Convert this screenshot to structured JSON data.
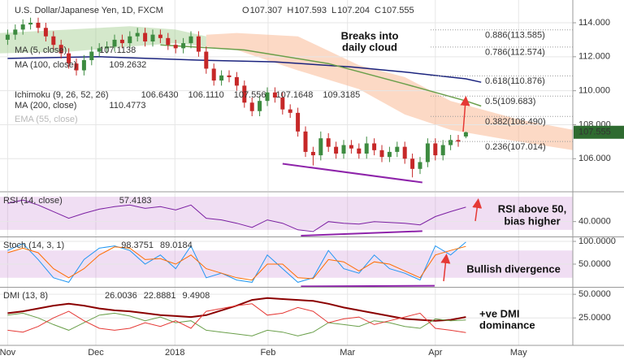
{
  "chart_data": [
    {
      "type": "candlestick",
      "title": "U.S. Dollar/Japanese Yen, 1D, FXCM",
      "ohlc_labels": [
        "O",
        "H",
        "L",
        "C"
      ],
      "categories": [
        null,
        null,
        null,
        null,
        null,
        null,
        null,
        null,
        null,
        null,
        null,
        null,
        null,
        null,
        null,
        null,
        null,
        null,
        null,
        null,
        null,
        null,
        null,
        null,
        null,
        null,
        null,
        null,
        null,
        null,
        null,
        null,
        null,
        null,
        null,
        null,
        null,
        null,
        null,
        null,
        null,
        null,
        null,
        null,
        null,
        null,
        null,
        null,
        null,
        null,
        null,
        null,
        null,
        null,
        null,
        null,
        null,
        null,
        null,
        null,
        null
      ],
      "open": [
        113.0,
        113.3,
        113.6,
        113.9,
        114.0,
        113.7,
        113.2,
        112.7,
        112.2,
        111.6,
        111.2,
        111.8,
        112.3,
        112.5,
        112.6,
        113.0,
        112.8,
        113.2,
        113.4,
        112.9,
        113.3,
        113.1,
        112.7,
        112.5,
        112.8,
        113.2,
        112.3,
        111.3,
        110.6,
        110.9,
        110.8,
        110.3,
        109.3,
        108.8,
        109.4,
        109.9,
        109.6,
        108.9,
        108.7,
        107.6,
        106.4,
        106.2,
        107.2,
        106.7,
        106.3,
        106.8,
        106.6,
        106.3,
        106.9,
        106.5,
        106.1,
        106.4,
        106.7,
        106.0,
        105.4,
        105.8,
        106.9,
        106.2,
        106.8,
        107.1,
        107.307
      ],
      "high": [
        113.6,
        113.9,
        114.2,
        114.3,
        114.3,
        114.0,
        113.5,
        113.0,
        112.5,
        111.9,
        112.1,
        112.6,
        112.8,
        112.9,
        113.3,
        113.3,
        113.5,
        113.7,
        113.7,
        113.6,
        113.6,
        113.4,
        113.0,
        113.1,
        113.5,
        113.5,
        112.6,
        111.6,
        111.2,
        111.2,
        111.1,
        110.6,
        109.6,
        109.7,
        110.2,
        110.2,
        109.9,
        109.2,
        109.0,
        107.9,
        106.7,
        107.6,
        107.5,
        107.0,
        107.1,
        107.1,
        106.9,
        107.3,
        107.2,
        106.8,
        106.7,
        107.0,
        107.0,
        106.3,
        106.1,
        107.2,
        107.2,
        107.1,
        107.4,
        107.4,
        107.593
      ],
      "low": [
        112.7,
        113.0,
        113.3,
        113.6,
        113.4,
        112.9,
        112.4,
        111.9,
        111.3,
        110.9,
        110.9,
        111.5,
        112.0,
        112.2,
        112.3,
        112.5,
        112.5,
        112.9,
        112.6,
        112.6,
        112.8,
        112.4,
        112.2,
        112.2,
        112.5,
        112.0,
        111.0,
        110.3,
        110.3,
        110.5,
        110.0,
        109.0,
        108.5,
        108.5,
        109.1,
        109.3,
        108.6,
        108.4,
        107.3,
        106.1,
        105.6,
        105.9,
        106.4,
        106.0,
        106.0,
        106.3,
        106.0,
        106.0,
        106.2,
        105.8,
        105.8,
        106.1,
        105.7,
        104.9,
        105.1,
        105.5,
        105.9,
        105.9,
        106.5,
        106.7,
        107.204
      ],
      "close": [
        113.3,
        113.6,
        113.9,
        114.0,
        113.7,
        113.2,
        112.7,
        112.2,
        111.6,
        111.2,
        111.8,
        112.3,
        112.5,
        112.6,
        113.0,
        112.8,
        113.2,
        113.4,
        112.9,
        113.3,
        113.1,
        112.7,
        112.5,
        112.8,
        113.2,
        112.3,
        111.3,
        110.6,
        110.9,
        110.8,
        110.3,
        109.3,
        108.8,
        109.4,
        109.9,
        109.6,
        108.9,
        108.7,
        107.6,
        106.4,
        106.2,
        107.2,
        106.7,
        106.3,
        106.8,
        106.6,
        106.3,
        106.9,
        106.5,
        106.1,
        106.4,
        106.7,
        106.0,
        105.4,
        105.8,
        106.9,
        106.2,
        106.8,
        107.1,
        107.0,
        107.555
      ],
      "up_color": "#3d8b40",
      "down_color": "#c62828",
      "last_price_color": "#2e6b30",
      "xlim": [
        -1,
        74
      ],
      "xticks": [
        {
          "value": 0,
          "label": "Nov"
        },
        {
          "value": 11.55,
          "label": "Dec"
        },
        {
          "value": 21.9,
          "label": "2018"
        },
        {
          "value": 34.1,
          "label": "Feb"
        },
        {
          "value": 44.5,
          "label": "Mar"
        },
        {
          "value": 56,
          "label": "Apr"
        },
        {
          "value": 66.9,
          "label": "May"
        }
      ],
      "ylim": [
        104.1,
        115.34
      ],
      "yticks": [
        {
          "value": 114,
          "label": "114.000"
        },
        {
          "value": 112,
          "label": "112.000"
        },
        {
          "value": 110,
          "label": "110.000"
        },
        {
          "value": 108,
          "label": "108.000"
        },
        {
          "value": 106,
          "label": "106.000"
        }
      ],
      "grid": true,
      "overlays": [
        {
          "name": "MA (5, close)",
          "readout": [
            "107.1138"
          ],
          "readout_colors": [
            "#c62828"
          ],
          "faded": false
        },
        {
          "name": "MA (100, close)",
          "readout": [
            "109.2632"
          ],
          "readout_colors": [
            "#4caf50"
          ],
          "faded": false,
          "color": "#1a237e",
          "x": [
            0,
            12,
            25,
            35,
            45,
            52,
            60,
            62
          ],
          "values": [
            111.9,
            112.0,
            111.8,
            111.7,
            111.4,
            111.1,
            110.7,
            110.5
          ]
        },
        {
          "name": "Ichimoku (9, 26, 52, 26)",
          "readout": [
            "106.6430",
            "106.1110",
            "107.556",
            "107.1648",
            "109.3185"
          ],
          "readout_colors": [
            "#1e88e5",
            "#8b0000",
            "#4caf50",
            "#4caf50",
            "#c62828"
          ],
          "faded": false
        },
        {
          "name": "MA (200, close)",
          "readout": [
            "110.4773"
          ],
          "readout_colors": [
            "#1e88e5"
          ],
          "faded": false,
          "color": "#6a9f4a",
          "x": [
            20,
            31,
            42,
            52,
            60,
            62
          ],
          "values": [
            112.7,
            112.4,
            111.6,
            110.4,
            109.4,
            109.1
          ]
        },
        {
          "name": "EMA (55, close)",
          "readout": [],
          "readout_colors": [],
          "faded": true
        }
      ],
      "cloud": [
        {
          "color": "rgba(160,205,140,0.45)",
          "x": [
            -1,
            8,
            16,
            22,
            26
          ],
          "upper": [
            113.4,
            113.6,
            113.8,
            113.6,
            113.2
          ],
          "lower": [
            112.2,
            112.3,
            112.6,
            112.8,
            112.6
          ]
        },
        {
          "color": "rgba(250,180,140,0.5)",
          "x": [
            26,
            30,
            38,
            46,
            52,
            58,
            67,
            74
          ],
          "upper": [
            113.3,
            113.4,
            113.2,
            111.5,
            110.8,
            109.4,
            108.3,
            107.7
          ],
          "lower": [
            112.6,
            112.4,
            111.2,
            110.1,
            108.6,
            107.7,
            107.0,
            106.5
          ]
        }
      ],
      "fib_levels": [
        {
          "label": "0.886(113.585)",
          "value": 113.585,
          "color": "#444"
        },
        {
          "label": "0.786(112.574)",
          "value": 112.574,
          "color": "#444"
        },
        {
          "label": "0.618(110.876)",
          "value": 110.876,
          "color": "#444"
        },
        {
          "label": "0.5(109.683)",
          "value": 109.683,
          "color": "#1e88e5"
        },
        {
          "label": "0.382(108.490)",
          "value": 108.49,
          "color": "#444"
        },
        {
          "label": "0.236(107.014)",
          "value": 107.014,
          "color": "#444"
        }
      ],
      "trendline": {
        "color": "#8e24aa",
        "x": [
          36,
          54.3
        ],
        "values": [
          105.7,
          104.6
        ]
      },
      "annotation": [
        "Breaks into",
        "daily cloud"
      ]
    },
    {
      "type": "line",
      "title": "RSI (14, close)",
      "x": [
        0,
        2,
        4,
        6,
        8,
        10,
        12,
        14,
        16,
        18,
        20,
        22,
        24,
        26,
        28,
        30,
        32,
        34,
        36,
        38,
        40,
        42,
        44,
        46,
        48,
        50,
        52,
        54,
        56,
        58,
        60
      ],
      "series": [
        {
          "color": "#7b1fa2",
          "values": [
            62,
            66,
            60,
            52,
            44,
            50,
            55,
            58,
            60,
            56,
            58,
            54,
            60,
            44,
            42,
            38,
            33,
            42,
            38,
            30,
            28,
            40,
            38,
            37,
            40,
            39,
            38,
            36,
            46,
            52,
            57.4183
          ]
        }
      ],
      "ylim": [
        22,
        75
      ],
      "yticks": [
        {
          "value": 40,
          "label": "40.0000"
        }
      ],
      "grid": true,
      "band": [
        30,
        70
      ],
      "band_color": "rgba(206,147,216,0.3)",
      "trendline": {
        "color": "#8e24aa",
        "x": [
          38.4,
          54.3
        ],
        "values": [
          23,
          28.5
        ]
      },
      "annotation": [
        "RSI above 50,",
        "bias higher"
      ]
    },
    {
      "type": "line",
      "title": "Stoch (14, 3, 1)",
      "x": [
        0,
        2,
        4,
        6,
        8,
        10,
        12,
        14,
        16,
        18,
        20,
        22,
        24,
        26,
        28,
        30,
        32,
        34,
        36,
        38,
        40,
        42,
        44,
        46,
        48,
        50,
        52,
        54,
        56,
        58,
        60
      ],
      "series": [
        {
          "color": "#2196f3",
          "values": [
            80,
            95,
            60,
            20,
            10,
            60,
            85,
            90,
            80,
            50,
            70,
            40,
            90,
            20,
            30,
            15,
            10,
            70,
            40,
            10,
            20,
            80,
            40,
            30,
            70,
            40,
            30,
            15,
            90,
            70,
            98.3751
          ]
        },
        {
          "color": "#ff6d00",
          "values": [
            75,
            85,
            75,
            40,
            20,
            40,
            70,
            88,
            85,
            60,
            62,
            50,
            70,
            40,
            30,
            20,
            15,
            50,
            50,
            20,
            18,
            60,
            55,
            35,
            55,
            50,
            35,
            20,
            70,
            80,
            89.0184
          ]
        }
      ],
      "ylim": [
        0,
        109
      ],
      "yticks": [
        {
          "value": 100,
          "label": "100.0000"
        },
        {
          "value": 50,
          "label": "50.0000"
        }
      ],
      "grid": true,
      "band": [
        20,
        80
      ],
      "band_color": "rgba(206,147,216,0.3)",
      "trendline": {
        "color": "#8e24aa",
        "x": [
          38.4,
          55.9
        ],
        "values": [
          1,
          2.5
        ]
      },
      "annotation": [
        "Bullish divergence"
      ]
    },
    {
      "type": "line",
      "title": "DMI (13, 8)",
      "x": [
        0,
        2,
        4,
        6,
        8,
        10,
        12,
        14,
        16,
        18,
        20,
        22,
        24,
        26,
        28,
        30,
        32,
        34,
        36,
        38,
        40,
        42,
        44,
        46,
        48,
        50,
        52,
        54,
        56,
        58,
        60
      ],
      "series": [
        {
          "color": "#8b0000",
          "values": [
            30,
            32,
            35,
            38,
            40,
            38,
            35,
            33,
            32,
            30,
            28,
            27,
            26,
            28,
            33,
            38,
            44,
            46,
            45,
            44,
            43,
            40,
            36,
            33,
            30,
            27,
            24,
            23,
            22,
            23,
            26.0036
          ]
        },
        {
          "color": "#6a9f4a",
          "values": [
            28,
            30,
            25,
            18,
            12,
            20,
            28,
            30,
            27,
            22,
            26,
            20,
            22,
            12,
            10,
            8,
            6,
            12,
            10,
            6,
            10,
            20,
            18,
            16,
            22,
            20,
            16,
            14,
            24,
            22,
            22.8881
          ]
        },
        {
          "color": "#e53935",
          "values": [
            12,
            10,
            16,
            25,
            32,
            22,
            14,
            12,
            14,
            20,
            16,
            22,
            14,
            32,
            35,
            38,
            40,
            28,
            30,
            36,
            32,
            20,
            24,
            26,
            18,
            22,
            26,
            30,
            14,
            12,
            9.4908
          ]
        }
      ],
      "ylim": [
        -4,
        57
      ],
      "yticks": [
        {
          "value": 50,
          "label": "50.0000"
        },
        {
          "value": 25,
          "label": "25.0000"
        }
      ],
      "grid": true,
      "annotation": [
        "+ve DMI",
        "dominance"
      ]
    }
  ]
}
